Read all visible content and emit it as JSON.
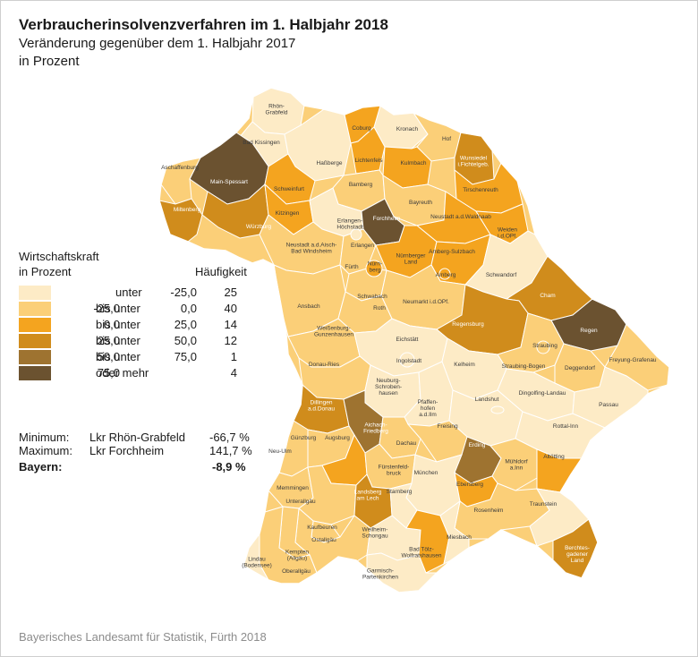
{
  "title": "Verbraucherinsolvenzverfahren im 1. Halbjahr 2018",
  "subtitle": "Veränderung gegenüber dem 1. Halbjahr 2017",
  "unit_line": "in Prozent",
  "legend": {
    "title_line1": "Wirtschaftskraft",
    "title_line2": "in Prozent",
    "count_header": "Häufigkeit",
    "classes": [
      {
        "from": "",
        "sep": "unter",
        "to": "-25,0",
        "count": "25",
        "color": "#fdebc6"
      },
      {
        "from": "-25,0",
        "sep": "bis unter",
        "to": "0,0",
        "count": "40",
        "color": "#fbcf78"
      },
      {
        "from": "0,0",
        "sep": "bis unter",
        "to": "25,0",
        "count": "14",
        "color": "#f4a41f"
      },
      {
        "from": "25,0",
        "sep": "bis unter",
        "to": "50,0",
        "count": "12",
        "color": "#d08c1c"
      },
      {
        "from": "50,0",
        "sep": "bis unter",
        "to": "75,0",
        "count": "1",
        "color": "#9e7330"
      },
      {
        "from": "75,0",
        "sep": "oder mehr",
        "to": "",
        "count": "4",
        "color": "#6b5230"
      }
    ]
  },
  "stats": {
    "min_label": "Minimum:",
    "min_region": "Lkr Rhön-Grabfeld",
    "min_value": "-66,7 %",
    "max_label": "Maximum:",
    "max_region": "Lkr Forchheim",
    "max_value": "141,7 %",
    "total_label": "Bayern:",
    "total_value": "-8,9 %"
  },
  "map": {
    "border_color": "#ffffff",
    "regions": [
      {
        "name": "Rhön-Grabfeld",
        "cls": 0
      },
      {
        "name": "Bad Kissingen",
        "cls": 0
      },
      {
        "name": "Aschaffenburg",
        "cls": 1
      },
      {
        "name": "Main-Spessart",
        "cls": 5
      },
      {
        "name": "Miltenberg",
        "cls": 3
      },
      {
        "name": "Schweinfurt",
        "cls": 2
      },
      {
        "name": "Würzburg",
        "cls": 3
      },
      {
        "name": "Kitzingen",
        "cls": 2
      },
      {
        "name": "Haßberge",
        "cls": 0
      },
      {
        "name": "Coburg",
        "cls": 2
      },
      {
        "name": "Kronach",
        "cls": 0
      },
      {
        "name": "Lichtenfels",
        "cls": 2
      },
      {
        "name": "Kulmbach",
        "cls": 2
      },
      {
        "name": "Hof",
        "cls": 1
      },
      {
        "name": "Wunsiedel i.Fichtelgeb.",
        "cls": 3
      },
      {
        "name": "Bamberg",
        "cls": 1
      },
      {
        "name": "Bayreuth",
        "cls": 1
      },
      {
        "name": "Tirschenreuth",
        "cls": 2
      },
      {
        "name": "Forchheim",
        "cls": 5
      },
      {
        "name": "Erlangen-Höchstadt",
        "cls": 0
      },
      {
        "name": "Neustadt a.d.Waldnaab",
        "cls": 2
      },
      {
        "name": "Weiden i.d.OPf.",
        "cls": 2
      },
      {
        "name": "Neustadt a.d.Aisch-Bad Windsheim",
        "cls": 1
      },
      {
        "name": "Erlangen",
        "cls": 0
      },
      {
        "name": "Fürth",
        "cls": 1
      },
      {
        "name": "Nürnberg",
        "cls": 2
      },
      {
        "name": "Nürnberger Land",
        "cls": 2
      },
      {
        "name": "Amberg-Sulzbach",
        "cls": 2
      },
      {
        "name": "Amberg",
        "cls": 2
      },
      {
        "name": "Schwandorf",
        "cls": 0
      },
      {
        "name": "Cham",
        "cls": 3
      },
      {
        "name": "Ansbach",
        "cls": 1
      },
      {
        "name": "Schwabach",
        "cls": 1
      },
      {
        "name": "Roth",
        "cls": 1
      },
      {
        "name": "Neumarkt i.d.OPf.",
        "cls": 1
      },
      {
        "name": "Regensburg",
        "cls": 3
      },
      {
        "name": "Regen",
        "cls": 5
      },
      {
        "name": "Weißenburg-Gunzenhausen",
        "cls": 1
      },
      {
        "name": "Straubing",
        "cls": 1
      },
      {
        "name": "Freyung-Grafenau",
        "cls": 1
      },
      {
        "name": "Straubing-Bogen",
        "cls": 1
      },
      {
        "name": "Deggendorf",
        "cls": 1
      },
      {
        "name": "Eichstätt",
        "cls": 0
      },
      {
        "name": "Kelheim",
        "cls": 0
      },
      {
        "name": "Donau-Ries",
        "cls": 1
      },
      {
        "name": "Ingolstadt",
        "cls": 0
      },
      {
        "name": "Neuburg-Schrobenhausen",
        "cls": 0
      },
      {
        "name": "Dingolfing-Landau",
        "cls": 0
      },
      {
        "name": "Passau",
        "cls": 0
      },
      {
        "name": "Dillingen a.d.Donau",
        "cls": 3
      },
      {
        "name": "Pfaffenhofen a.d.Ilm",
        "cls": 0
      },
      {
        "name": "Landshut",
        "cls": 0
      },
      {
        "name": "Aichach-Friedberg",
        "cls": 4
      },
      {
        "name": "Rottal-Inn",
        "cls": 0
      },
      {
        "name": "Neu-Ulm",
        "cls": 1
      },
      {
        "name": "Günzburg",
        "cls": 1
      },
      {
        "name": "Augsburg",
        "cls": 2
      },
      {
        "name": "Dachau",
        "cls": 1
      },
      {
        "name": "Freising",
        "cls": 1
      },
      {
        "name": "Erding",
        "cls": 4
      },
      {
        "name": "Mühldorf a.Inn",
        "cls": 1
      },
      {
        "name": "Altötting",
        "cls": 2
      },
      {
        "name": "Fürstenfeldbruck",
        "cls": 1
      },
      {
        "name": "München",
        "cls": 0
      },
      {
        "name": "Memmingen",
        "cls": 1
      },
      {
        "name": "Unterallgäu",
        "cls": 1
      },
      {
        "name": "Landsberg am Lech",
        "cls": 3
      },
      {
        "name": "Starnberg",
        "cls": 0
      },
      {
        "name": "Ebersberg",
        "cls": 2
      },
      {
        "name": "Rosenheim",
        "cls": 1
      },
      {
        "name": "Traunstein",
        "cls": 0
      },
      {
        "name": "Kaufbeuren",
        "cls": 1
      },
      {
        "name": "Ostallgäu",
        "cls": 1
      },
      {
        "name": "Weilheim-Schongau",
        "cls": 0
      },
      {
        "name": "Miesbach",
        "cls": 0
      },
      {
        "name": "Bad Tölz-Wolfratshausen",
        "cls": 2
      },
      {
        "name": "Berchtesgadener Land",
        "cls": 3
      },
      {
        "name": "Kempten (Allgäu)",
        "cls": 1
      },
      {
        "name": "Oberallgäu",
        "cls": 1
      },
      {
        "name": "Lindau (Bodensee)",
        "cls": 0
      },
      {
        "name": "Garmisch-Partenkirchen",
        "cls": 0
      }
    ]
  },
  "source": "Bayerisches Landesamt für Statistik, Fürth 2018"
}
